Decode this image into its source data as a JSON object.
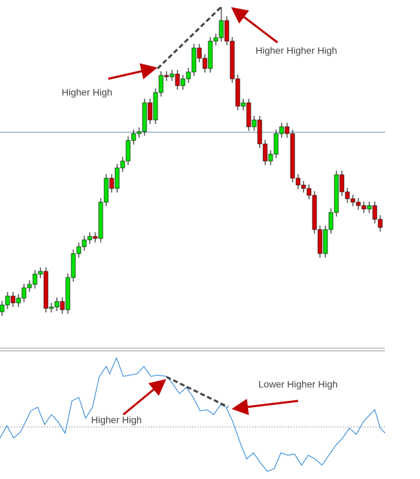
{
  "chart_data": [
    {
      "type": "candlestick",
      "ylim": [
        0,
        500
      ],
      "open": [
        45,
        55,
        68,
        58,
        65,
        80,
        85,
        100,
        104,
        50,
        52,
        60,
        48,
        95,
        130,
        140,
        150,
        155,
        152,
        205,
        240,
        225,
        255,
        265,
        295,
        305,
        308,
        350,
        325,
        365,
        390,
        388,
        392,
        375,
        385,
        395,
        430,
        415,
        400,
        440,
        445,
        470,
        440,
        385,
        345,
        350,
        315,
        325,
        290,
        265,
        275,
        305,
        315,
        305,
        240,
        230,
        225,
        215,
        165,
        130,
        165,
        190,
        245,
        220,
        210,
        205,
        200,
        195,
        200,
        180
      ],
      "high": [
        61,
        74,
        74,
        71,
        86,
        91,
        106,
        110,
        110,
        58,
        66,
        66,
        101,
        136,
        146,
        156,
        161,
        161,
        211,
        246,
        246,
        261,
        271,
        301,
        311,
        314,
        356,
        356,
        371,
        396,
        396,
        398,
        398,
        391,
        401,
        436,
        436,
        421,
        446,
        451,
        490,
        476,
        446,
        391,
        356,
        356,
        331,
        331,
        296,
        281,
        311,
        321,
        321,
        311,
        246,
        236,
        231,
        221,
        171,
        171,
        196,
        251,
        251,
        226,
        216,
        211,
        206,
        206,
        206,
        186
      ],
      "low": [
        39,
        49,
        52,
        52,
        59,
        74,
        79,
        94,
        44,
        44,
        46,
        42,
        42,
        89,
        124,
        134,
        144,
        146,
        146,
        199,
        219,
        219,
        249,
        259,
        289,
        299,
        302,
        319,
        319,
        359,
        382,
        382,
        369,
        369,
        379,
        389,
        409,
        394,
        394,
        434,
        439,
        434,
        379,
        339,
        339,
        309,
        309,
        284,
        259,
        259,
        269,
        299,
        299,
        234,
        224,
        219,
        209,
        159,
        124,
        124,
        159,
        184,
        214,
        204,
        199,
        194,
        189,
        189,
        174,
        162
      ],
      "close": [
        55,
        68,
        58,
        65,
        80,
        85,
        100,
        104,
        50,
        52,
        60,
        48,
        95,
        130,
        140,
        150,
        155,
        152,
        205,
        240,
        225,
        255,
        265,
        295,
        305,
        308,
        350,
        325,
        365,
        390,
        388,
        392,
        375,
        385,
        395,
        430,
        415,
        400,
        440,
        445,
        470,
        440,
        385,
        345,
        350,
        315,
        325,
        290,
        265,
        275,
        305,
        315,
        305,
        240,
        230,
        225,
        215,
        165,
        130,
        165,
        190,
        245,
        220,
        210,
        205,
        200,
        195,
        200,
        180,
        168
      ],
      "up_color": "#00e000",
      "down_color": "#d40000",
      "level": 307,
      "level_color": "#5b87a8",
      "annotations": [
        "Higher High",
        "Higher Higher High"
      ]
    },
    {
      "type": "line",
      "xlim": [
        0,
        562
      ],
      "ylim": [
        0,
        100
      ],
      "x": [
        0,
        10,
        20,
        30,
        45,
        55,
        65,
        75,
        85,
        95,
        105,
        115,
        125,
        135,
        145,
        155,
        160,
        170,
        180,
        190,
        200,
        210,
        220,
        230,
        243,
        252,
        262,
        272,
        282,
        292,
        302,
        312,
        322,
        330,
        340,
        350,
        360,
        370,
        380,
        390,
        400,
        410,
        420,
        430,
        440,
        450,
        460,
        470,
        480,
        490,
        500,
        510,
        520,
        530,
        540,
        547,
        555,
        562
      ],
      "values": [
        31,
        41,
        31,
        36,
        53,
        56,
        42,
        50,
        44,
        35,
        61,
        64,
        47,
        56,
        81,
        89,
        83,
        96,
        81,
        82,
        83,
        89,
        81,
        82,
        81,
        75,
        67,
        72,
        64,
        53,
        54,
        50,
        58,
        56,
        44,
        28,
        14,
        19,
        11,
        4,
        6,
        19,
        17,
        18,
        9,
        17,
        14,
        9,
        17,
        25,
        31,
        39,
        34,
        44,
        50,
        54,
        39,
        35
      ],
      "color": "#1e7fd8",
      "level": 40,
      "annotations": [
        "Higher High",
        "Lower Higher High"
      ]
    }
  ]
}
